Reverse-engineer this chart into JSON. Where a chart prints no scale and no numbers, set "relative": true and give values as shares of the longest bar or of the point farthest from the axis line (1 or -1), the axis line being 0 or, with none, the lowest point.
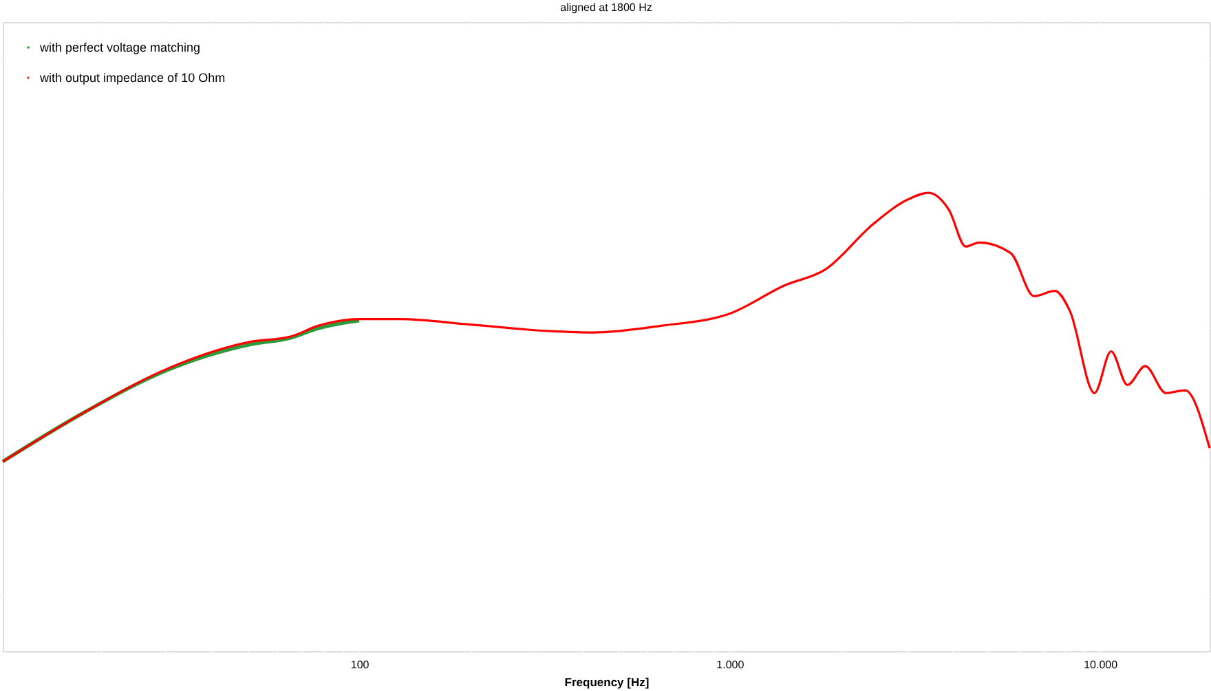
{
  "chart_data": {
    "type": "line",
    "title": "aligned at 1800 Hz",
    "xlabel": "Frequency [Hz]",
    "relative": true,
    "log": "x",
    "grid": true,
    "legend": "top left",
    "line_style": "solid",
    "marker": "none",
    "xlim": [
      10.9,
      19770
    ],
    "xticks": [
      {
        "value": 20,
        "label": null
      },
      {
        "value": 30,
        "label": null
      },
      {
        "value": 40,
        "label": null
      },
      {
        "value": 50,
        "label": null
      },
      {
        "value": 60,
        "label": null
      },
      {
        "value": 70,
        "label": null
      },
      {
        "value": 80,
        "label": null
      },
      {
        "value": 90,
        "label": null
      },
      {
        "value": 100,
        "label": "100"
      },
      {
        "value": 200,
        "label": null
      },
      {
        "value": 300,
        "label": null
      },
      {
        "value": 400,
        "label": null
      },
      {
        "value": 500,
        "label": null
      },
      {
        "value": 600,
        "label": null
      },
      {
        "value": 700,
        "label": null
      },
      {
        "value": 800,
        "label": null
      },
      {
        "value": 900,
        "label": null
      },
      {
        "value": 1000,
        "label": "1.000"
      },
      {
        "value": 2000,
        "label": null
      },
      {
        "value": 3000,
        "label": null
      },
      {
        "value": 4000,
        "label": null
      },
      {
        "value": 5000,
        "label": null
      },
      {
        "value": 6000,
        "label": null
      },
      {
        "value": 7000,
        "label": null
      },
      {
        "value": 8000,
        "label": null
      },
      {
        "value": 9000,
        "label": null
      },
      {
        "value": 10000,
        "label": "10.000"
      }
    ],
    "x": [
      10.9,
      18.2,
      30.3,
      50.6,
      65.3,
      77.4,
      100,
      129,
      198,
      330,
      427,
      653,
      1000,
      1406,
      1815,
      2448,
      3030,
      3443,
      3914,
      4339,
      4723,
      5743,
      6641,
      7550,
      8294,
      9665,
      10715,
      11860,
      13250,
      15060,
      16980,
      19770
    ],
    "series": [
      {
        "name": "with perfect voltage matching",
        "color": "#2e9a3a",
        "values": [
          0,
          0.185,
          0.34,
          0.435,
          0.46,
          0.495,
          0.525,
          null,
          null,
          null,
          null,
          null,
          null,
          null,
          null,
          null,
          null,
          null,
          null,
          null,
          null,
          null,
          null,
          null,
          null,
          null,
          null,
          null,
          null,
          null,
          null,
          null
        ]
      },
      {
        "name": "with output impedance of 10 Ohm",
        "color": "#ff0000",
        "values": [
          0,
          0.185,
          0.345,
          0.445,
          0.465,
          0.505,
          0.53,
          0.53,
          0.51,
          0.485,
          0.48,
          0.505,
          0.55,
          0.655,
          0.715,
          0.885,
          0.975,
          1,
          0.935,
          0.8,
          0.815,
          0.775,
          0.615,
          0.635,
          0.56,
          0.255,
          0.41,
          0.285,
          0.355,
          0.255,
          0.265,
          0.05
        ]
      }
    ]
  }
}
